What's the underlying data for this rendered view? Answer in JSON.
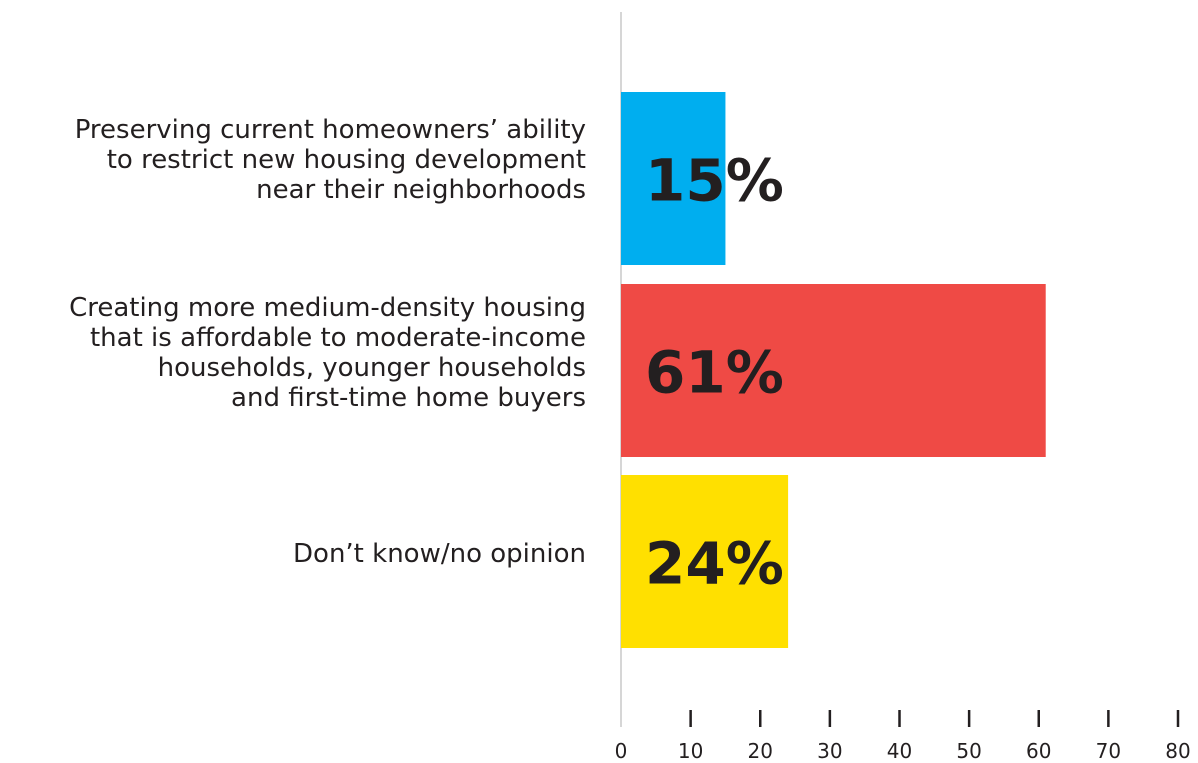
{
  "chart_data": {
    "type": "bar",
    "orientation": "horizontal",
    "categories": [
      "Preserving current homeowners’ ability\nto restrict new housing development\nnear their neighborhoods",
      "Creating more medium-density housing\nthat is affordable to moderate-income\nhouseholds, younger households\nand first-time home buyers",
      "Don’t know/no opinion"
    ],
    "values": [
      15,
      61,
      24
    ],
    "value_labels": [
      "15%",
      "61%",
      "24%"
    ],
    "colors": [
      "#00aeef",
      "#ef4a45",
      "#ffe000"
    ],
    "xlim": [
      0,
      80
    ],
    "xticks": [
      0,
      10,
      20,
      30,
      40,
      50,
      60,
      70,
      80
    ],
    "xtick_labels": [
      "0",
      "10",
      "20",
      "30",
      "40",
      "50",
      "60",
      "70",
      "80"
    ],
    "title": "",
    "xlabel": "",
    "ylabel": "",
    "grid": false,
    "legend": "none"
  }
}
